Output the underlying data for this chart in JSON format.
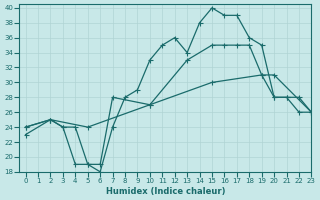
{
  "xlabel": "Humidex (Indice chaleur)",
  "xlim": [
    -0.5,
    23
  ],
  "ylim": [
    18,
    40.5
  ],
  "yticks": [
    18,
    20,
    22,
    24,
    26,
    28,
    30,
    32,
    34,
    36,
    38,
    40
  ],
  "xticks": [
    0,
    1,
    2,
    3,
    4,
    5,
    6,
    7,
    8,
    9,
    10,
    11,
    12,
    13,
    14,
    15,
    16,
    17,
    18,
    19,
    20,
    21,
    22,
    23
  ],
  "bg_color": "#c8e8e8",
  "line_color": "#1a6b6b",
  "grid_color": "#b0d4d4",
  "line1_x": [
    0,
    2,
    3,
    4,
    5,
    6,
    7,
    8,
    9,
    10,
    11,
    12,
    13,
    14,
    15,
    16,
    17,
    18,
    19,
    20,
    21,
    22,
    23
  ],
  "line1_y": [
    23,
    25,
    24,
    19,
    19,
    18,
    24,
    28,
    29,
    33,
    35,
    36,
    34,
    38,
    40,
    39,
    39,
    36,
    35,
    28,
    28,
    26,
    26
  ],
  "line2_x": [
    0,
    2,
    3,
    4,
    5,
    6,
    7,
    10,
    13,
    15,
    16,
    17,
    18,
    19,
    20,
    21,
    22,
    23
  ],
  "line2_y": [
    24,
    25,
    24,
    24,
    19,
    19,
    28,
    27,
    33,
    35,
    35,
    35,
    35,
    31,
    28,
    28,
    28,
    26
  ],
  "line3_x": [
    0,
    2,
    5,
    10,
    15,
    19,
    20,
    23
  ],
  "line3_y": [
    24,
    25,
    24,
    27,
    30,
    31,
    31,
    26
  ]
}
